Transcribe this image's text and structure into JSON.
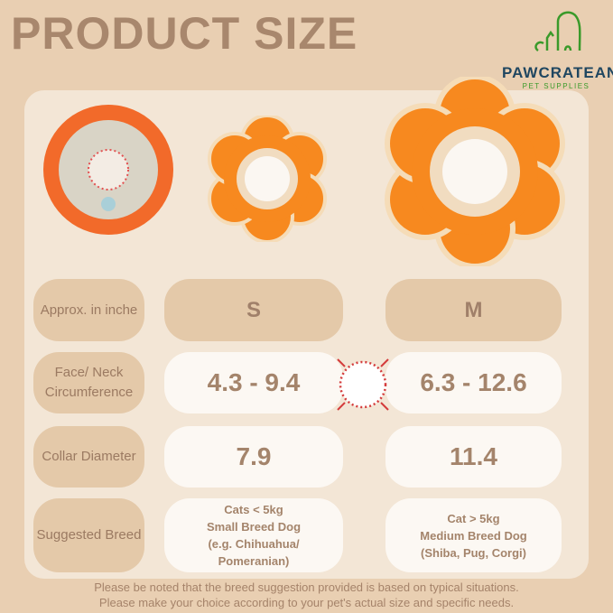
{
  "title": "PRODUCT SIZE",
  "logo": {
    "brand": "PAWCRATEAN",
    "tagline": "PET SUPPLIES"
  },
  "rows": [
    {
      "label": "Approx. in inche",
      "s": "S",
      "m": "M"
    },
    {
      "label": "Face/ Neck Circumference",
      "s": "4.3 - 9.4",
      "m": "6.3 - 12.6"
    },
    {
      "label": "Collar Diameter",
      "s": "7.9",
      "m": "11.4"
    },
    {
      "label": "Suggested Breed",
      "s_lines": [
        "Cats < 5kg",
        "Small Breed Dog",
        "(e.g. Chihuahua/",
        "Pomeranian)"
      ],
      "m_lines": [
        "Cat > 5kg",
        "Medium Breed Dog",
        "(Shiba, Pug, Corgi)"
      ]
    }
  ],
  "notes": [
    "Please be noted that the breed suggestion provided is based on typical situations.",
    "Please make your choice according to your pet's actual size and specific needs."
  ],
  "colors": {
    "background": "#e9cfb2",
    "panel": "#f3e6d6",
    "orange": "#f7891f",
    "cream": "#f5dcb8",
    "logo_green": "#3a9a2a"
  }
}
